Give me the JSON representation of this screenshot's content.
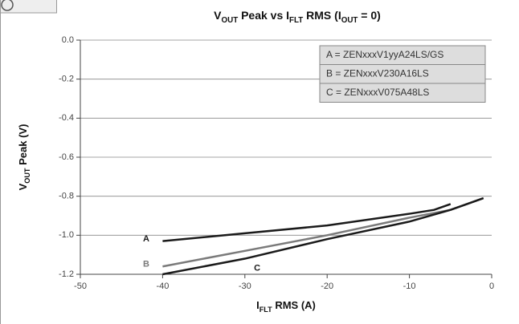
{
  "chart_data": {
    "type": "line",
    "title_parts": [
      "V",
      "OUT",
      " Peak vs I",
      "FLT",
      " RMS (I",
      "OUT",
      " = 0)"
    ],
    "ylabel_parts": [
      "V",
      "OUT",
      " Peak (V)"
    ],
    "xlabel_parts": [
      "I",
      "FLT",
      " RMS (A)"
    ],
    "xlim": [
      -50,
      0
    ],
    "xticks": [
      -50,
      -40,
      -30,
      -20,
      -10,
      0
    ],
    "ylim": [
      -1.2,
      0
    ],
    "yticks": [
      {
        "value": 0,
        "label": "0.0"
      },
      -0.2,
      -0.4,
      -0.6,
      -0.8,
      {
        "value": -1,
        "label": "-1.0"
      },
      -1.2
    ],
    "grid": true,
    "legend": [
      "A = ZENxxxV1yyA24LS/GS",
      "B = ZENxxxV230A16LS",
      "C = ZENxxxV075A48LS"
    ],
    "series": [
      {
        "name": "A",
        "color": "#1a1a1a",
        "x": [
          -40,
          -30,
          -20,
          -10,
          -7,
          -5
        ],
        "values": [
          -1.03,
          -0.99,
          -0.95,
          -0.89,
          -0.87,
          -0.84
        ]
      },
      {
        "name": "B",
        "color": "#7a7a7a",
        "x": [
          -40,
          -30,
          -20,
          -10,
          -5,
          -1
        ],
        "values": [
          -1.16,
          -1.08,
          -1.0,
          -0.91,
          -0.87,
          -0.81
        ]
      },
      {
        "name": "C",
        "color": "#1a1a1a",
        "x": [
          -40,
          -30,
          -20,
          -10,
          -5,
          -1
        ],
        "values": [
          -1.2,
          -1.12,
          -1.02,
          -0.93,
          -0.87,
          -0.81
        ]
      }
    ]
  }
}
